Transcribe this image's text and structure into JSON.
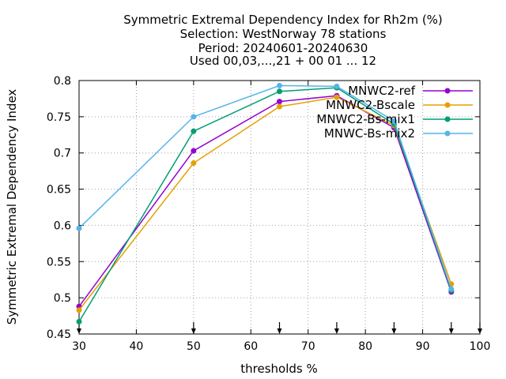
{
  "chart_data": {
    "type": "line",
    "title_lines": [
      "Symmetric Extremal Dependency Index  for Rh2m (%)",
      "Selection: WestNorway     78 stations",
      "Period: 20240601-20240630",
      "Used 00,03,...,21 + 00 01 ... 12"
    ],
    "xlabel": "thresholds %",
    "ylabel": "Symmetric Extremal Dependency Index",
    "xlim": [
      30,
      100
    ],
    "ylim": [
      0.45,
      0.8
    ],
    "xticks": [
      30,
      40,
      50,
      60,
      70,
      80,
      90,
      100
    ],
    "yticks": [
      0.45,
      0.5,
      0.55,
      0.6,
      0.65,
      0.7,
      0.75,
      0.8
    ],
    "ytick_labels": [
      "0.45",
      "0.5",
      "0.55",
      "0.6",
      "0.65",
      "0.7",
      "0.75",
      "0.8"
    ],
    "grid": true,
    "legend_position": "top-right",
    "x": [
      30,
      50,
      65,
      75,
      85,
      95
    ],
    "threshold_markers": [
      30,
      50,
      65,
      75,
      85,
      95,
      100
    ],
    "series": [
      {
        "name": "MNWC2-ref",
        "color": "#9400d3",
        "values": [
          0.488,
          0.703,
          0.771,
          0.779,
          0.735,
          0.508
        ]
      },
      {
        "name": "MNWC2-Bscale",
        "color": "#e69f00",
        "values": [
          0.483,
          0.686,
          0.764,
          0.777,
          0.738,
          0.519
        ]
      },
      {
        "name": "MNWC2-Bs-mix1",
        "color": "#009e73",
        "values": [
          0.467,
          0.73,
          0.785,
          0.79,
          0.74,
          0.51
        ]
      },
      {
        "name": "MNWC-Bs-mix2",
        "color": "#56b4e9",
        "values": [
          0.596,
          0.75,
          0.793,
          0.792,
          0.744,
          0.512
        ]
      }
    ]
  }
}
